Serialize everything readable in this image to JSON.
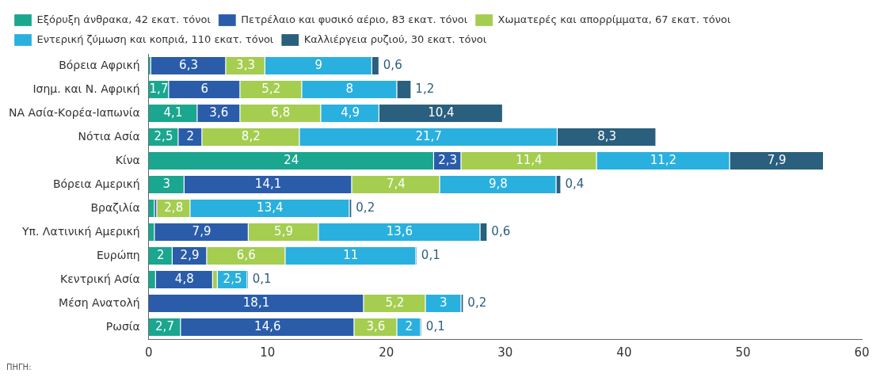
{
  "chart_data": {
    "type": "bar",
    "orientation": "horizontal",
    "stacked": true,
    "legend": "top left",
    "grid": false,
    "categories": [
      "Βόρεια Αφρική",
      "Ισημ. και Ν. Αφρική",
      "ΝΑ Ασία-Κορέα-Ιαπωνία",
      "Νότια Ασία",
      "Κίνα",
      "Βόρεια Αμερική",
      "Βραζιλία",
      "Υπ. Λατινική Αμερική",
      "Ευρώπη",
      "Κεντρική Ασία",
      "Μέση Ανατολή",
      "Ρωσία"
    ],
    "series": [
      {
        "name": "Εξόρυξη άνθρακα, 42 εκατ. τόνοι",
        "color": "#1aa68f",
        "values": [
          0.2,
          1.7,
          4.1,
          2.5,
          24,
          3,
          0.5,
          0.5,
          2,
          0.6,
          null,
          2.7
        ],
        "value_labels": [
          null,
          "1,7",
          "4,1",
          "2,5",
          "24",
          "3",
          null,
          null,
          "2",
          null,
          null,
          "2,7"
        ]
      },
      {
        "name": "Πετρέλαιο και φυσικό αέριο, 83 εκατ. τόνοι",
        "color": "#2a5caa",
        "values": [
          6.3,
          6,
          3.6,
          2,
          2.3,
          14.1,
          0.2,
          7.9,
          2.9,
          4.8,
          18.1,
          14.6
        ],
        "value_labels": [
          "6,3",
          "6",
          "3,6",
          "2",
          "2,3",
          "14,1",
          null,
          "7,9",
          "2,9",
          "4,8",
          "18,1",
          "14,6"
        ]
      },
      {
        "name": "Χωματερές και απορρίμματα, 67 εκατ. τόνοι",
        "color": "#a5cd50",
        "values": [
          3.3,
          5.2,
          6.8,
          8.2,
          11.4,
          7.4,
          2.8,
          5.9,
          6.6,
          0.4,
          5.2,
          3.6
        ],
        "value_labels": [
          "3,3",
          "5,2",
          "6,8",
          "8,2",
          "11,4",
          "7,4",
          "2,8",
          "5,9",
          "6,6",
          null,
          "5,2",
          "3,6"
        ]
      },
      {
        "name": "Εντερική ζύμωση και κοπριά, 110 εκατ. τόνοι",
        "color": "#29b0de",
        "values": [
          9,
          8,
          4.9,
          21.7,
          11.2,
          9.8,
          13.4,
          13.6,
          11,
          2.5,
          3,
          2
        ],
        "value_labels": [
          "9",
          "8",
          "4,9",
          "21,7",
          "11,2",
          "9,8",
          "13,4",
          "13,6",
          "11",
          "2,5",
          "3",
          "2"
        ]
      },
      {
        "name": "Καλλιέργεια ρυζιού, 30 εκατ. τόνοι",
        "color": "#2a5f7d",
        "values": [
          0.6,
          1.2,
          10.4,
          8.3,
          7.9,
          0.4,
          0.2,
          0.6,
          0.1,
          0.1,
          0.2,
          0.1
        ],
        "value_labels": [
          "0,6",
          "1,2",
          "10,4",
          "8,3",
          "7,9",
          "0,4",
          "0,2",
          "0,6",
          "0,1",
          "0,1",
          "0,2",
          "0,1"
        ]
      }
    ],
    "xlim": [
      0,
      60
    ],
    "xticks": [
      0,
      10,
      20,
      30,
      40,
      50,
      60
    ],
    "annotations": [
      "ΠΗΓΗ:"
    ]
  }
}
